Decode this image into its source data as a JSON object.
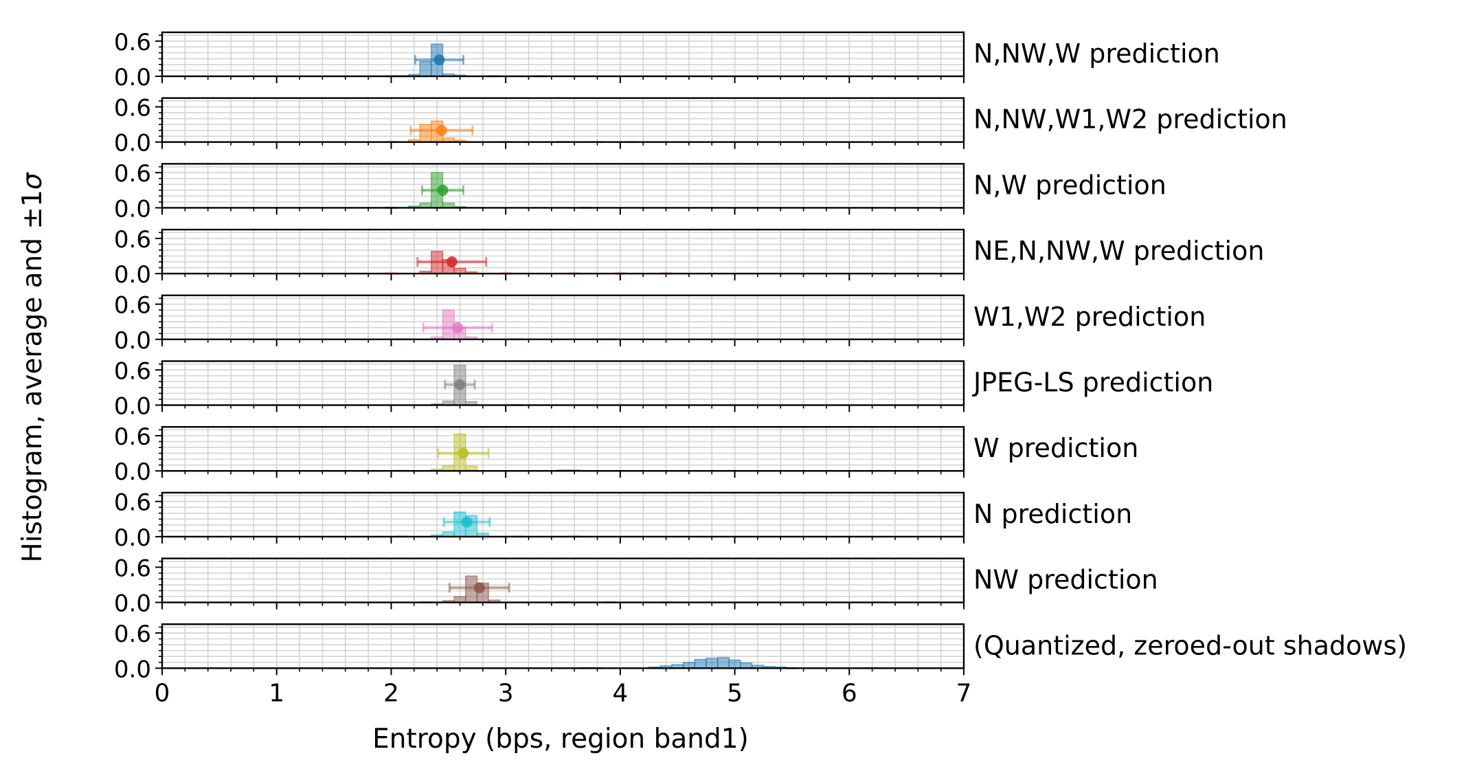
{
  "chart_data": {
    "type": "bar",
    "subtype": "stacked-histogram-panels",
    "xlabel": "Entropy (bps, region band1)",
    "ylabel": "Histogram, average and ±1σ",
    "ylabel_parts": {
      "text": "Histogram, average and ±1",
      "sigma": "σ"
    },
    "xlim": [
      0,
      7
    ],
    "ylim": [
      0,
      0.75
    ],
    "xticks": [
      "0",
      "1",
      "2",
      "3",
      "4",
      "5",
      "6",
      "7"
    ],
    "yticks": [
      "0.0",
      "0.6"
    ],
    "grid": true,
    "panels": [
      {
        "name": "N,NW,W prediction",
        "color": "#1f77b4",
        "mean": 2.42,
        "std": 0.21,
        "marker_y": 0.28,
        "bins": [
          [
            1.95,
            2.05,
            0.01
          ],
          [
            2.05,
            2.15,
            0.01
          ],
          [
            2.15,
            2.25,
            0.03
          ],
          [
            2.25,
            2.35,
            0.25
          ],
          [
            2.35,
            2.45,
            0.55
          ],
          [
            2.45,
            2.55,
            0.04
          ],
          [
            2.55,
            2.65,
            0.02
          ],
          [
            2.85,
            2.95,
            0.01
          ],
          [
            3.25,
            3.35,
            0.01
          ]
        ]
      },
      {
        "name": "N,NW,W1,W2 prediction",
        "color": "#ff7f0e",
        "mean": 2.44,
        "std": 0.27,
        "marker_y": 0.2,
        "bins": [
          [
            1.95,
            2.05,
            0.01
          ],
          [
            2.15,
            2.25,
            0.04
          ],
          [
            2.25,
            2.35,
            0.3
          ],
          [
            2.35,
            2.45,
            0.36
          ],
          [
            2.45,
            2.55,
            0.07
          ],
          [
            2.55,
            2.65,
            0.03
          ],
          [
            2.95,
            3.05,
            0.01
          ],
          [
            3.45,
            3.55,
            0.01
          ],
          [
            3.75,
            3.85,
            0.01
          ],
          [
            4.05,
            4.15,
            0.01
          ]
        ]
      },
      {
        "name": "N,W prediction",
        "color": "#2ca02c",
        "mean": 2.45,
        "std": 0.18,
        "marker_y": 0.3,
        "bins": [
          [
            1.95,
            2.05,
            0.01
          ],
          [
            2.15,
            2.25,
            0.03
          ],
          [
            2.25,
            2.35,
            0.08
          ],
          [
            2.35,
            2.45,
            0.6
          ],
          [
            2.45,
            2.55,
            0.08
          ],
          [
            2.55,
            2.65,
            0.02
          ],
          [
            3.65,
            3.75,
            0.01
          ]
        ]
      },
      {
        "name": "NE,N,NW,W prediction",
        "color": "#d62728",
        "mean": 2.53,
        "std": 0.3,
        "marker_y": 0.2,
        "bins": [
          [
            1.95,
            2.05,
            0.01
          ],
          [
            2.25,
            2.35,
            0.04
          ],
          [
            2.35,
            2.45,
            0.38
          ],
          [
            2.45,
            2.55,
            0.24
          ],
          [
            2.55,
            2.65,
            0.09
          ],
          [
            2.65,
            2.75,
            0.03
          ],
          [
            2.95,
            3.05,
            0.01
          ],
          [
            3.55,
            3.65,
            0.01
          ],
          [
            3.95,
            4.05,
            0.01
          ],
          [
            4.35,
            4.45,
            0.01
          ]
        ]
      },
      {
        "name": "W1,W2 prediction",
        "color": "#e377c2",
        "mean": 2.58,
        "std": 0.3,
        "marker_y": 0.2,
        "bins": [
          [
            2.05,
            2.15,
            0.01
          ],
          [
            2.35,
            2.45,
            0.04
          ],
          [
            2.45,
            2.55,
            0.5
          ],
          [
            2.55,
            2.65,
            0.2
          ],
          [
            2.65,
            2.75,
            0.04
          ],
          [
            3.05,
            3.15,
            0.01
          ],
          [
            3.85,
            3.95,
            0.01
          ]
        ]
      },
      {
        "name": "JPEG-LS prediction",
        "color": "#7f7f7f",
        "mean": 2.6,
        "std": 0.13,
        "marker_y": 0.35,
        "bins": [
          [
            2.35,
            2.45,
            0.02
          ],
          [
            2.45,
            2.55,
            0.07
          ],
          [
            2.55,
            2.65,
            0.68
          ],
          [
            2.65,
            2.75,
            0.06
          ],
          [
            3.05,
            3.15,
            0.01
          ]
        ]
      },
      {
        "name": "W prediction",
        "color": "#bcbd22",
        "mean": 2.63,
        "std": 0.22,
        "marker_y": 0.3,
        "bins": [
          [
            2.05,
            2.15,
            0.01
          ],
          [
            2.35,
            2.45,
            0.03
          ],
          [
            2.45,
            2.55,
            0.09
          ],
          [
            2.55,
            2.65,
            0.63
          ],
          [
            2.65,
            2.75,
            0.08
          ],
          [
            3.45,
            3.55,
            0.02
          ],
          [
            3.55,
            3.65,
            0.02
          ]
        ]
      },
      {
        "name": "N prediction",
        "color": "#17becf",
        "mean": 2.66,
        "std": 0.2,
        "marker_y": 0.25,
        "bins": [
          [
            2.05,
            2.15,
            0.01
          ],
          [
            2.35,
            2.45,
            0.03
          ],
          [
            2.45,
            2.55,
            0.08
          ],
          [
            2.55,
            2.65,
            0.42
          ],
          [
            2.65,
            2.75,
            0.36
          ],
          [
            2.75,
            2.85,
            0.06
          ],
          [
            3.05,
            3.15,
            0.01
          ],
          [
            3.55,
            3.65,
            0.01
          ]
        ]
      },
      {
        "name": "NW prediction",
        "color": "#8c564b",
        "mean": 2.77,
        "std": 0.26,
        "marker_y": 0.25,
        "bins": [
          [
            2.25,
            2.35,
            0.01
          ],
          [
            2.45,
            2.55,
            0.03
          ],
          [
            2.55,
            2.65,
            0.1
          ],
          [
            2.65,
            2.75,
            0.45
          ],
          [
            2.75,
            2.85,
            0.33
          ],
          [
            2.85,
            2.95,
            0.04
          ],
          [
            3.45,
            3.55,
            0.01
          ],
          [
            3.85,
            3.95,
            0.01
          ],
          [
            4.35,
            4.45,
            0.01
          ]
        ]
      },
      {
        "name": "(Quantized, zeroed-out shadows)",
        "color": "#1f77b4",
        "mean": 4.85,
        "std": 0.0,
        "marker_y": 0.0,
        "bins": [
          [
            3.65,
            3.75,
            0.01
          ],
          [
            3.75,
            3.85,
            0.01
          ],
          [
            4.25,
            4.35,
            0.02
          ],
          [
            4.35,
            4.45,
            0.04
          ],
          [
            4.45,
            4.55,
            0.06
          ],
          [
            4.55,
            4.65,
            0.1
          ],
          [
            4.65,
            4.75,
            0.15
          ],
          [
            4.75,
            4.85,
            0.17
          ],
          [
            4.85,
            4.95,
            0.18
          ],
          [
            4.95,
            5.05,
            0.14
          ],
          [
            5.05,
            5.15,
            0.09
          ],
          [
            5.15,
            5.25,
            0.05
          ],
          [
            5.25,
            5.35,
            0.03
          ],
          [
            5.35,
            5.45,
            0.02
          ],
          [
            5.45,
            5.55,
            0.01
          ],
          [
            6.15,
            6.25,
            0.01
          ]
        ]
      }
    ]
  }
}
